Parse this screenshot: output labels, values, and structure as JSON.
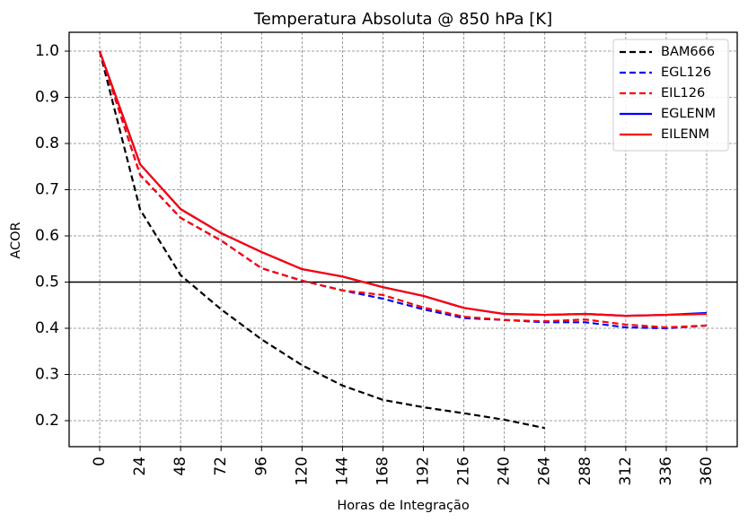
{
  "chart_data": {
    "type": "line",
    "title": "Temperatura Absoluta @ 850 hPa [K]",
    "xlabel": "Horas de Integração",
    "ylabel": "ACOR",
    "x": [
      0,
      24,
      48,
      72,
      96,
      120,
      144,
      168,
      192,
      216,
      240,
      264,
      288,
      312,
      336,
      360
    ],
    "xticks": [
      "0",
      "24",
      "48",
      "72",
      "96",
      "120",
      "144",
      "168",
      "192",
      "216",
      "240",
      "264",
      "288",
      "312",
      "336",
      "360"
    ],
    "yticks": [
      "0.2",
      "0.3",
      "0.4",
      "0.5",
      "0.6",
      "0.7",
      "0.8",
      "0.9",
      "1.0"
    ],
    "ytick_values": [
      0.2,
      0.3,
      0.4,
      0.5,
      0.6,
      0.7,
      0.8,
      0.9,
      1.0
    ],
    "xlim": [
      -15,
      375
    ],
    "ylim": [
      0.144,
      1.04
    ],
    "grid": true,
    "reference_line": {
      "y": 0.5,
      "color": "#000000"
    },
    "legend_position": "top-right",
    "series": [
      {
        "name": "BAM666",
        "color": "#000000",
        "style": "dashed",
        "values": [
          1.0,
          0.657,
          0.515,
          0.441,
          0.376,
          0.32,
          0.276,
          0.245,
          0.229,
          0.216,
          0.202,
          0.184
        ]
      },
      {
        "name": "EGL126",
        "color": "#0000ff",
        "style": "dashed",
        "values": [
          1.0,
          0.732,
          0.639,
          0.59,
          0.53,
          0.503,
          0.482,
          0.464,
          0.441,
          0.422,
          0.418,
          0.413,
          0.413,
          0.402,
          0.4,
          0.406
        ]
      },
      {
        "name": "EIL126",
        "color": "#ff0000",
        "style": "dashed",
        "values": [
          1.0,
          0.732,
          0.639,
          0.59,
          0.53,
          0.503,
          0.482,
          0.472,
          0.445,
          0.425,
          0.418,
          0.415,
          0.419,
          0.408,
          0.402,
          0.406
        ]
      },
      {
        "name": "EGLENM",
        "color": "#0000ff",
        "style": "solid",
        "values": [
          1.0,
          0.755,
          0.658,
          0.606,
          0.565,
          0.528,
          0.512,
          0.489,
          0.47,
          0.444,
          0.431,
          0.429,
          0.431,
          0.427,
          0.429,
          0.433
        ]
      },
      {
        "name": "EILENM",
        "color": "#ff0000",
        "style": "solid",
        "values": [
          1.0,
          0.755,
          0.658,
          0.606,
          0.565,
          0.528,
          0.512,
          0.489,
          0.47,
          0.444,
          0.431,
          0.429,
          0.431,
          0.427,
          0.429,
          0.431
        ]
      }
    ]
  }
}
